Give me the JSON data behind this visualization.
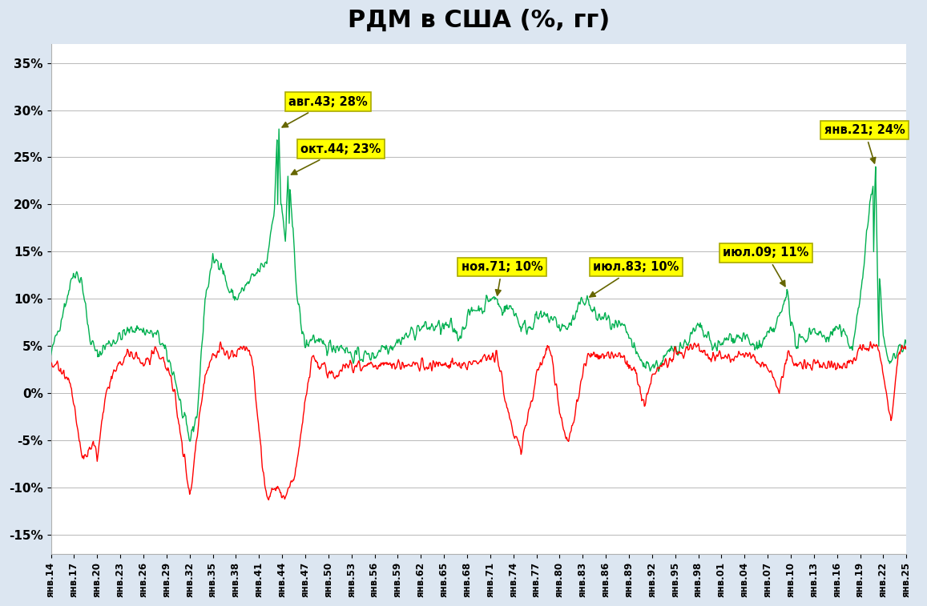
{
  "title": "РДМ в США (%, гг)",
  "title_fontsize": 22,
  "background_color": "#dce6f1",
  "plot_background": "#ffffff",
  "yticks": [
    -15,
    -10,
    -5,
    0,
    5,
    10,
    15,
    20,
    25,
    30,
    35
  ],
  "ylim": [
    -17,
    37
  ],
  "xtick_labels": [
    "янв.14",
    "янв.17",
    "янв.20",
    "янв.23",
    "янв.26",
    "янв.29",
    "янв.32",
    "янв.35",
    "янв.38",
    "янв.41",
    "янв.44",
    "янв.47",
    "янв.50",
    "янв.53",
    "янв.56",
    "янв.59",
    "янв.62",
    "янв.65",
    "янв.68",
    "янв.71",
    "янв.74",
    "янв.77",
    "янв.80",
    "янв.83",
    "янв.86",
    "янв.89",
    "янв.92",
    "янв.95",
    "янв.98",
    "янв.01",
    "янв.04",
    "янв.07",
    "янв.10",
    "янв.13",
    "янв.16",
    "янв.19",
    "янв.22",
    "янв.25"
  ],
  "green_color": "#00b050",
  "red_color": "#ff0000",
  "n_months": 1333
}
